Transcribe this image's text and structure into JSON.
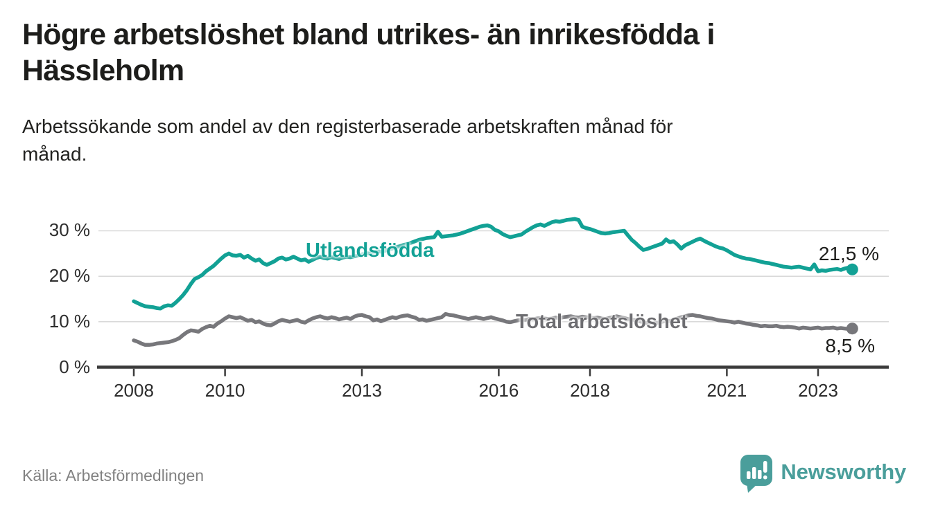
{
  "header": {
    "title": "Högre arbetslöshet bland utrikes- än inrikesfödda i\nHässleholm",
    "subtitle": "Arbetssökande som andel av den registerbaserade arbetskraften månad för\nmånad."
  },
  "footer": {
    "source": "Källa: Arbetsförmedlingen",
    "logo_text": "Newsworthy"
  },
  "colors": {
    "series_foreign": "#12a195",
    "series_total": "#77777b",
    "series_total_label": "#6d6d71",
    "grid": "#d9d9d9",
    "axis": "#3b3b3b",
    "tick_text": "#2d2d2d",
    "end_label_text": "#1d1d1b",
    "source_text": "#828282",
    "logo": "#4a9e9b"
  },
  "chart_data": {
    "type": "line",
    "title": "Högre arbetslöshet bland utrikes- än inrikesfödda i Hässleholm",
    "subtitle": "Arbetssökande som andel av den registerbaserade arbetskraften månad för månad.",
    "xlabel": "",
    "ylabel": "",
    "x_unit": "month",
    "x_start_year": 2008,
    "x_end_label_year": 2023.75,
    "x_ticks": [
      2008,
      2010,
      2013,
      2016,
      2018,
      2021,
      2023
    ],
    "x_tick_labels": [
      "2008",
      "2010",
      "2013",
      "2016",
      "2018",
      "2021",
      "2023"
    ],
    "y_ticks": [
      0,
      10,
      20,
      30
    ],
    "y_tick_labels": [
      "0 %",
      "10 %",
      "20 %",
      "30 %"
    ],
    "ylim": [
      0,
      33.5
    ],
    "grid": "horizontal-only",
    "legend_position": "inline-labels",
    "series": [
      {
        "name": "Utlandsfödda",
        "color": "#12a195",
        "end_label": "21,5 %",
        "end_value": 21.5,
        "values": [
          14.5,
          14.1,
          13.7,
          13.4,
          13.3,
          13.2,
          13.0,
          12.9,
          13.4,
          13.6,
          13.5,
          14.2,
          15.0,
          15.9,
          17.0,
          18.3,
          19.4,
          19.8,
          20.3,
          21.1,
          21.7,
          22.3,
          23.1,
          23.9,
          24.6,
          25.0,
          24.6,
          24.5,
          24.7,
          24.1,
          24.5,
          23.9,
          23.4,
          23.7,
          22.9,
          22.5,
          22.9,
          23.3,
          23.9,
          24.1,
          23.7,
          23.9,
          24.3,
          23.9,
          23.5,
          23.7,
          23.2,
          23.6,
          24.0,
          24.3,
          24.0,
          23.9,
          24.2,
          24.0,
          23.8,
          24.1,
          24.3,
          24.2,
          24.4,
          24.6,
          24.8,
          25.1,
          25.0,
          25.2,
          25.5,
          25.4,
          25.6,
          25.9,
          26.1,
          26.4,
          26.6,
          26.9,
          27.1,
          27.4,
          27.7,
          28.0,
          28.2,
          28.4,
          28.5,
          28.6,
          29.8,
          28.7,
          28.8,
          28.9,
          29.0,
          29.2,
          29.4,
          29.7,
          30.0,
          30.3,
          30.6,
          30.9,
          31.1,
          31.2,
          30.9,
          30.2,
          29.9,
          29.3,
          28.9,
          28.6,
          28.8,
          29.0,
          29.2,
          29.8,
          30.3,
          30.8,
          31.2,
          31.4,
          31.1,
          31.5,
          31.9,
          32.1,
          32.0,
          32.2,
          32.4,
          32.5,
          32.6,
          32.4,
          30.9,
          30.6,
          30.4,
          30.1,
          29.8,
          29.5,
          29.4,
          29.5,
          29.7,
          29.8,
          29.9,
          30.0,
          29.0,
          28.0,
          27.3,
          26.5,
          25.8,
          26.0,
          26.3,
          26.6,
          26.9,
          27.2,
          28.1,
          27.5,
          27.7,
          27.0,
          26.1,
          26.8,
          27.2,
          27.6,
          28.0,
          28.3,
          27.8,
          27.4,
          27.0,
          26.6,
          26.3,
          26.1,
          25.7,
          25.2,
          24.7,
          24.4,
          24.1,
          23.9,
          23.8,
          23.6,
          23.4,
          23.2,
          23.0,
          22.9,
          22.7,
          22.5,
          22.3,
          22.1,
          22.0,
          21.9,
          22.0,
          22.1,
          21.9,
          21.7,
          21.5,
          22.6,
          21.1,
          21.3,
          21.2,
          21.4,
          21.5,
          21.6,
          21.4,
          21.7,
          21.9,
          21.5
        ]
      },
      {
        "name": "Total arbetslöshet",
        "color": "#77777b",
        "end_label": "8,5 %",
        "end_value": 8.5,
        "values": [
          5.9,
          5.6,
          5.2,
          4.9,
          4.9,
          5.0,
          5.2,
          5.3,
          5.4,
          5.5,
          5.7,
          6.0,
          6.4,
          7.1,
          7.7,
          8.1,
          8.0,
          7.8,
          8.4,
          8.8,
          9.1,
          8.9,
          9.6,
          10.1,
          10.7,
          11.2,
          11.0,
          10.8,
          11.0,
          10.6,
          10.2,
          10.4,
          9.9,
          10.1,
          9.6,
          9.3,
          9.2,
          9.6,
          10.1,
          10.4,
          10.2,
          10.0,
          10.2,
          10.4,
          10.0,
          9.8,
          10.3,
          10.7,
          11.0,
          11.2,
          10.9,
          10.7,
          11.0,
          10.8,
          10.5,
          10.7,
          10.9,
          10.6,
          11.1,
          11.4,
          11.5,
          11.2,
          11.0,
          10.3,
          10.5,
          10.1,
          10.4,
          10.7,
          11.0,
          10.8,
          11.1,
          11.3,
          11.4,
          11.1,
          10.9,
          10.4,
          10.5,
          10.2,
          10.4,
          10.6,
          10.8,
          11.0,
          11.7,
          11.5,
          11.4,
          11.2,
          11.0,
          10.8,
          10.6,
          10.8,
          11.0,
          10.8,
          10.6,
          10.8,
          11.0,
          10.7,
          10.5,
          10.3,
          10.0,
          9.9,
          10.1,
          10.3,
          10.5,
          10.4,
          10.6,
          10.5,
          10.7,
          10.8,
          10.7,
          10.6,
          10.7,
          10.9,
          10.8,
          11.0,
          11.1,
          11.2,
          11.0,
          10.9,
          11.1,
          11.0,
          10.9,
          10.8,
          10.9,
          10.7,
          10.6,
          10.8,
          11.0,
          11.2,
          11.0,
          10.8,
          10.6,
          10.5,
          10.3,
          10.1,
          9.9,
          9.7,
          9.8,
          9.7,
          9.8,
          10.0,
          10.2,
          10.1,
          10.4,
          10.7,
          11.0,
          11.2,
          11.4,
          11.5,
          11.3,
          11.2,
          11.0,
          10.8,
          10.7,
          10.5,
          10.3,
          10.2,
          10.1,
          10.0,
          9.8,
          10.0,
          9.8,
          9.6,
          9.5,
          9.3,
          9.2,
          9.0,
          9.1,
          9.0,
          9.0,
          9.1,
          8.9,
          8.8,
          8.9,
          8.8,
          8.7,
          8.5,
          8.7,
          8.6,
          8.5,
          8.6,
          8.7,
          8.5,
          8.6,
          8.6,
          8.7,
          8.5,
          8.6,
          8.5,
          8.4,
          8.5
        ]
      }
    ]
  }
}
